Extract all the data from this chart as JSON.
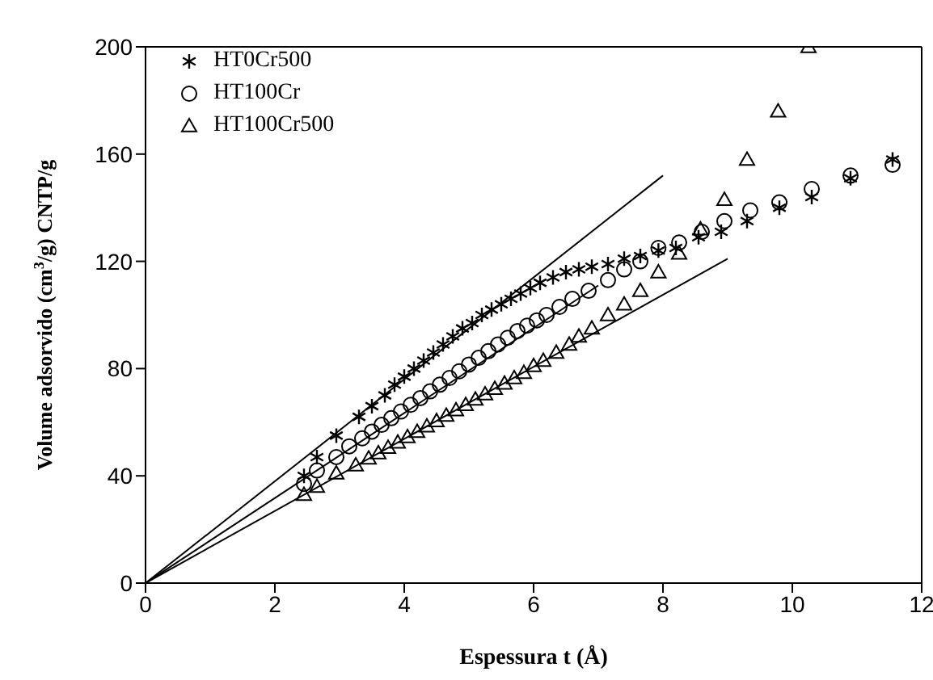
{
  "chart_data": {
    "type": "scatter",
    "xlabel": "Espessura  t (Å)",
    "ylabel": "Volume adsorvido (cm$^{3}$/g) CNTP/g",
    "xlim": [
      0,
      12
    ],
    "xticks": [
      0,
      2,
      4,
      6,
      8,
      10,
      12
    ],
    "ylim": [
      0,
      200
    ],
    "yticks": [
      0,
      40,
      80,
      120,
      160,
      200
    ],
    "legend": "top left",
    "grid": false,
    "series": [
      {
        "name": "HT0Cr500",
        "color": "#000000",
        "marker": "cross",
        "x": [
          2.45,
          2.65,
          2.95,
          3.3,
          3.5,
          3.7,
          3.85,
          4.0,
          4.15,
          4.3,
          4.45,
          4.6,
          4.75,
          4.9,
          5.05,
          5.2,
          5.35,
          5.5,
          5.65,
          5.8,
          5.95,
          6.1,
          6.3,
          6.5,
          6.7,
          6.9,
          7.15,
          7.4,
          7.65,
          7.93,
          8.2,
          8.55,
          8.9,
          9.3,
          9.8,
          10.3,
          10.9,
          11.55
        ],
        "values": [
          40,
          47,
          55,
          62,
          66,
          70,
          74,
          77,
          80,
          83,
          86,
          89,
          92,
          95,
          97,
          100,
          102,
          104,
          106,
          108,
          110,
          112,
          114,
          116,
          117,
          118,
          119,
          121,
          122,
          124,
          125,
          129,
          131,
          135,
          140,
          144,
          151,
          158
        ]
      },
      {
        "name": "HT100Cr",
        "color": "#000000",
        "marker": "circle",
        "x": [
          2.45,
          2.65,
          2.95,
          3.15,
          3.35,
          3.5,
          3.65,
          3.8,
          3.95,
          4.1,
          4.25,
          4.4,
          4.55,
          4.7,
          4.85,
          5.0,
          5.15,
          5.3,
          5.45,
          5.6,
          5.75,
          5.9,
          6.05,
          6.2,
          6.4,
          6.6,
          6.85,
          7.15,
          7.4,
          7.65,
          7.93,
          8.25,
          8.6,
          8.95,
          9.35,
          9.8,
          10.3,
          10.9,
          11.55
        ],
        "values": [
          37,
          42,
          47,
          51,
          54,
          56.5,
          59,
          61.5,
          64,
          66.5,
          69,
          71.5,
          74,
          76.5,
          79,
          81.5,
          84,
          86.5,
          89,
          91.5,
          94,
          96,
          98,
          100,
          103,
          106,
          109,
          113,
          117,
          120,
          125,
          127,
          131,
          135,
          139,
          142,
          147,
          152,
          156
        ]
      },
      {
        "name": "HT100Cr500",
        "color": "#000000",
        "marker": "triangle",
        "x": [
          2.45,
          2.65,
          2.95,
          3.25,
          3.45,
          3.6,
          3.75,
          3.9,
          4.05,
          4.2,
          4.35,
          4.5,
          4.65,
          4.8,
          4.95,
          5.1,
          5.25,
          5.4,
          5.55,
          5.7,
          5.85,
          6.0,
          6.15,
          6.35,
          6.55,
          6.7,
          6.9,
          7.15,
          7.4,
          7.65,
          7.93,
          8.25,
          8.58,
          8.95,
          9.3,
          9.78,
          10.25
        ],
        "values": [
          33,
          36,
          41,
          44,
          46.5,
          48.5,
          50.5,
          52.5,
          54.5,
          56.5,
          58.5,
          60.5,
          62.5,
          64.5,
          66.5,
          68.5,
          70.5,
          72.5,
          74.5,
          76.5,
          78.5,
          81,
          83,
          86,
          89,
          92,
          95,
          100,
          104,
          109,
          116,
          123,
          132,
          143,
          158,
          176,
          200
        ]
      },
      {
        "type": "line",
        "color": "#000000",
        "marker": "none",
        "line_style": "solid",
        "x": [
          0,
          8
        ],
        "values": [
          0,
          152
        ]
      },
      {
        "type": "line",
        "color": "#000000",
        "marker": "none",
        "line_style": "solid",
        "x": [
          0,
          7
        ],
        "values": [
          0,
          111
        ]
      },
      {
        "type": "line",
        "color": "#000000",
        "marker": "none",
        "line_style": "solid",
        "x": [
          0,
          9
        ],
        "values": [
          0,
          121
        ]
      }
    ]
  }
}
